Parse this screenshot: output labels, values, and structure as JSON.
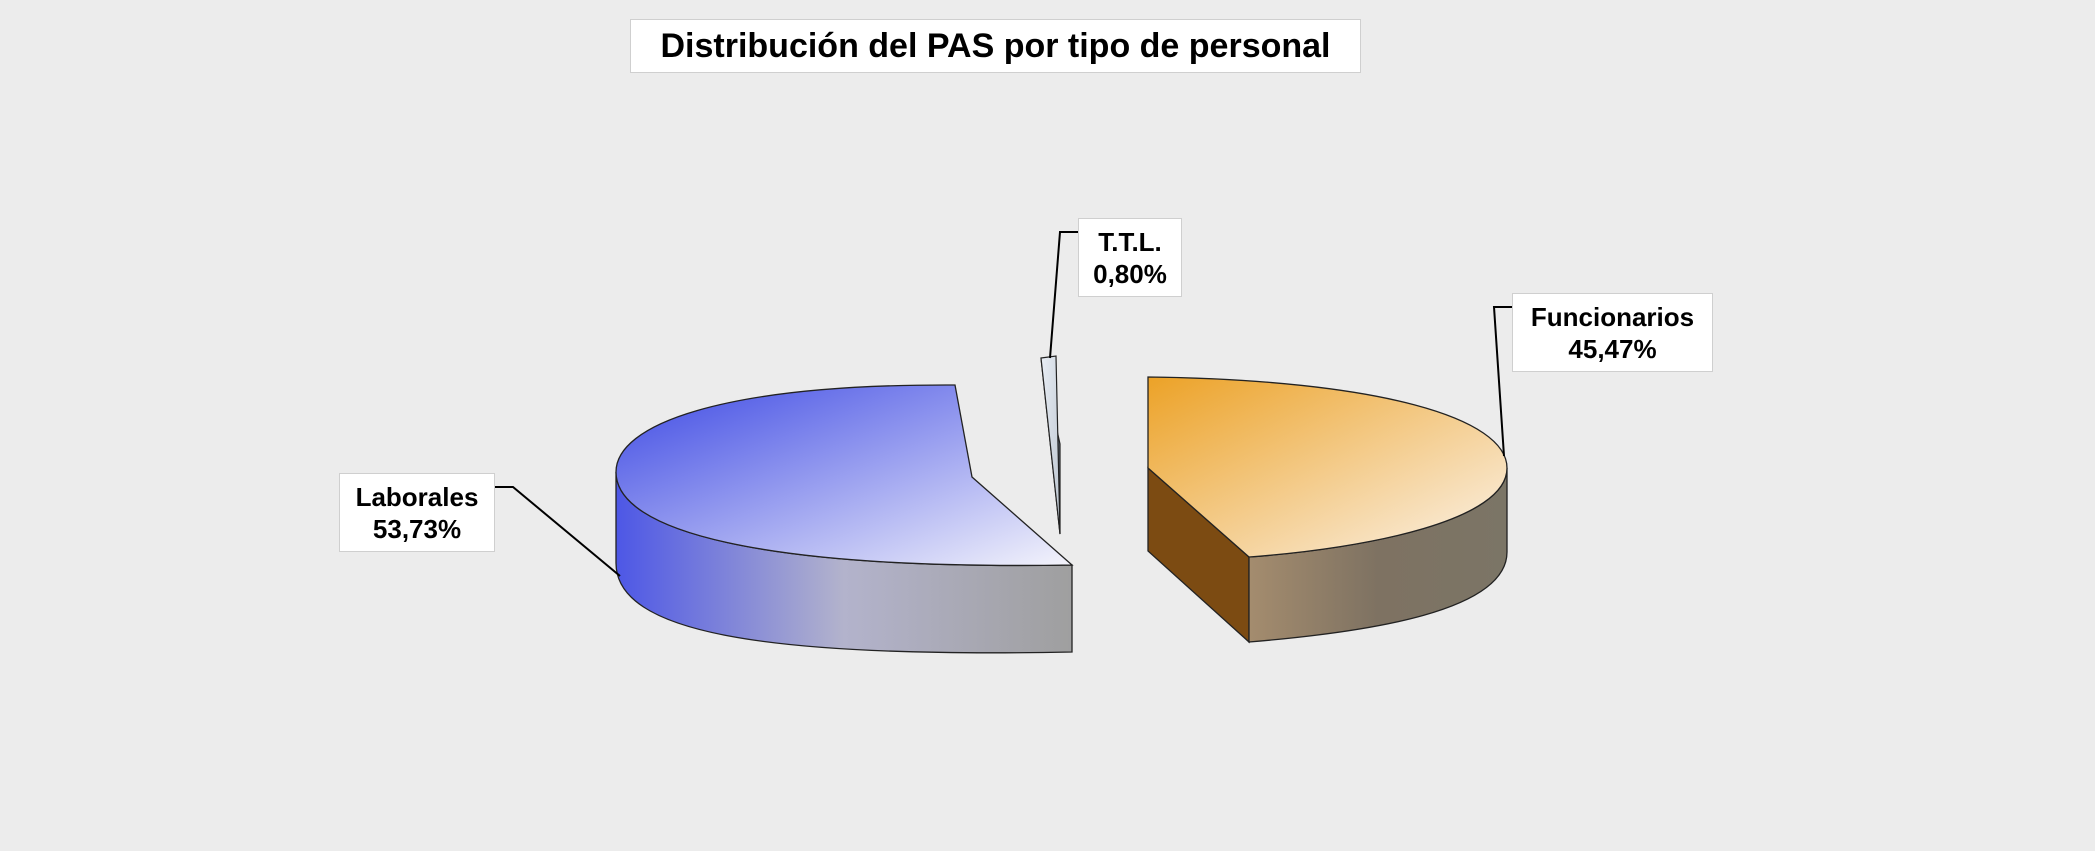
{
  "chart_data": {
    "type": "pie",
    "title": "Distribución del PAS por tipo de personal",
    "slices": [
      {
        "label": "Laborales",
        "value": 53.73,
        "value_text": "53,73%",
        "color": "#4a56e8"
      },
      {
        "label": "T.T.L.",
        "value": 0.8,
        "value_text": "0,80%",
        "color": "#9aa3ad"
      },
      {
        "label": "Funcionarios",
        "value": 45.47,
        "value_text": "45,47%",
        "color": "#eda72c"
      }
    ],
    "style": "3d-exploded",
    "legend": "none"
  },
  "colors": {
    "background": "#ececec",
    "laborales_side": "#5b63e6",
    "funcionarios_side": "#7c5224",
    "ttl_side": "#5f6a75"
  }
}
